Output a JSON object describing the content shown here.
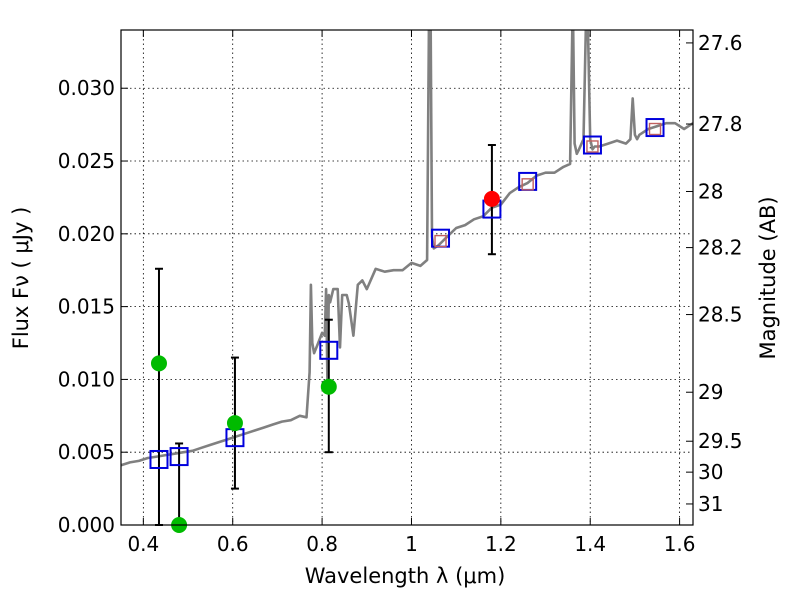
{
  "chart_data": {
    "type": "line",
    "xlabel": "Wavelength  λ (μm)",
    "ylabel": "Flux  Fν  ( μJy )",
    "y2label": "Magnitude (AB)",
    "xlim": [
      0.35,
      1.63
    ],
    "ylim": [
      0.0,
      0.034
    ],
    "grid": true,
    "xticks": [
      0.4,
      0.6,
      0.8,
      1.0,
      1.2,
      1.4,
      1.6
    ],
    "xtick_labels": [
      "0.4",
      "0.6",
      "0.8",
      "1",
      "1.2",
      "1.4",
      "1.6"
    ],
    "yticks": [
      0.0,
      0.005,
      0.01,
      0.015,
      0.02,
      0.025,
      0.03
    ],
    "ytick_labels": [
      "0.000",
      "0.005",
      "0.010",
      "0.015",
      "0.020",
      "0.025",
      "0.030"
    ],
    "magnitude_ticks": [
      27.6,
      27.8,
      28,
      28.2,
      28.5,
      29,
      29.5,
      30,
      31
    ],
    "magnitude_tick_labels": [
      "27.6",
      "27.8",
      "28",
      "28.2",
      "28.5",
      "29",
      "29.5",
      "30",
      "31"
    ],
    "colors": {
      "model_spectrum": "#808080",
      "model_photometry_box": "#0000dd",
      "observed_optical": "#00bb00",
      "observed_nir": "#ff0000",
      "inner_square": "#c06060",
      "errorbar": "#000000",
      "grid": "#000000"
    },
    "series": [
      {
        "name": "model spectrum",
        "kind": "line",
        "x": [
          0.35,
          0.37,
          0.39,
          0.41,
          0.43,
          0.45,
          0.47,
          0.49,
          0.51,
          0.53,
          0.55,
          0.57,
          0.59,
          0.61,
          0.63,
          0.65,
          0.67,
          0.69,
          0.71,
          0.73,
          0.75,
          0.765,
          0.772,
          0.775,
          0.778,
          0.782,
          0.79,
          0.8,
          0.806,
          0.809,
          0.812,
          0.815,
          0.818,
          0.825,
          0.835,
          0.84,
          0.845,
          0.85,
          0.855,
          0.86,
          0.87,
          0.88,
          0.89,
          0.9,
          0.92,
          0.94,
          0.96,
          0.98,
          1.0,
          1.02,
          1.035,
          1.039,
          1.041,
          1.043,
          1.046,
          1.05,
          1.06,
          1.08,
          1.1,
          1.12,
          1.14,
          1.16,
          1.18,
          1.2,
          1.22,
          1.24,
          1.26,
          1.28,
          1.3,
          1.32,
          1.34,
          1.355,
          1.36,
          1.362,
          1.365,
          1.37,
          1.375,
          1.385,
          1.39,
          1.395,
          1.4,
          1.405,
          1.41,
          1.42,
          1.44,
          1.46,
          1.48,
          1.49,
          1.495,
          1.5,
          1.505,
          1.51,
          1.53,
          1.55,
          1.57,
          1.59,
          1.61,
          1.63
        ],
        "y": [
          0.0041,
          0.0043,
          0.0044,
          0.0046,
          0.0047,
          0.0048,
          0.0049,
          0.005,
          0.0051,
          0.0053,
          0.0055,
          0.0057,
          0.0059,
          0.0061,
          0.0063,
          0.0065,
          0.0067,
          0.0069,
          0.0071,
          0.0072,
          0.0075,
          0.0074,
          0.0105,
          0.0165,
          0.0125,
          0.0118,
          0.0124,
          0.0132,
          0.013,
          0.0162,
          0.0095,
          0.0158,
          0.0153,
          0.0162,
          0.0162,
          0.0122,
          0.0158,
          0.0158,
          0.0158,
          0.0152,
          0.013,
          0.0165,
          0.0168,
          0.0162,
          0.0176,
          0.0174,
          0.0175,
          0.0175,
          0.018,
          0.0178,
          0.0182,
          0.034,
          0.034,
          0.034,
          0.0198,
          0.019,
          0.0192,
          0.0198,
          0.0204,
          0.0206,
          0.021,
          0.0212,
          0.0218,
          0.022,
          0.0228,
          0.0232,
          0.0235,
          0.024,
          0.0242,
          0.0242,
          0.0246,
          0.0248,
          0.034,
          0.034,
          0.0262,
          0.0255,
          0.0258,
          0.0265,
          0.034,
          0.034,
          0.0265,
          0.0258,
          0.026,
          0.026,
          0.0262,
          0.0264,
          0.0262,
          0.0265,
          0.0293,
          0.0268,
          0.0265,
          0.0268,
          0.0272,
          0.0274,
          0.0276,
          0.0276,
          0.0272,
          0.0276
        ]
      },
      {
        "name": "model photometry",
        "kind": "open-square",
        "x": [
          0.435,
          0.48,
          0.605,
          0.815,
          1.065,
          1.18,
          1.26,
          1.405,
          1.545
        ],
        "y": [
          0.0045,
          0.0047,
          0.006,
          0.012,
          0.0197,
          0.0217,
          0.0236,
          0.0261,
          0.0273
        ]
      },
      {
        "name": "model photometry (inner)",
        "kind": "small-square",
        "x": [
          1.065,
          1.26,
          1.405,
          1.545
        ],
        "y": [
          0.0195,
          0.0234,
          0.026,
          0.0272
        ]
      },
      {
        "name": "optical photometry",
        "kind": "point",
        "x": [
          0.435,
          0.48,
          0.605,
          0.815
        ],
        "y": [
          0.0111,
          0.0,
          0.007,
          0.0095
        ],
        "err_low": [
          0.0,
          0.0,
          0.0025,
          0.005
        ],
        "err_high": [
          0.0176,
          0.0056,
          0.0115,
          0.0141
        ]
      },
      {
        "name": "near-IR photometry",
        "kind": "point",
        "x": [
          1.18
        ],
        "y": [
          0.0224
        ],
        "err_low": [
          0.0186
        ],
        "err_high": [
          0.0261
        ]
      }
    ]
  }
}
